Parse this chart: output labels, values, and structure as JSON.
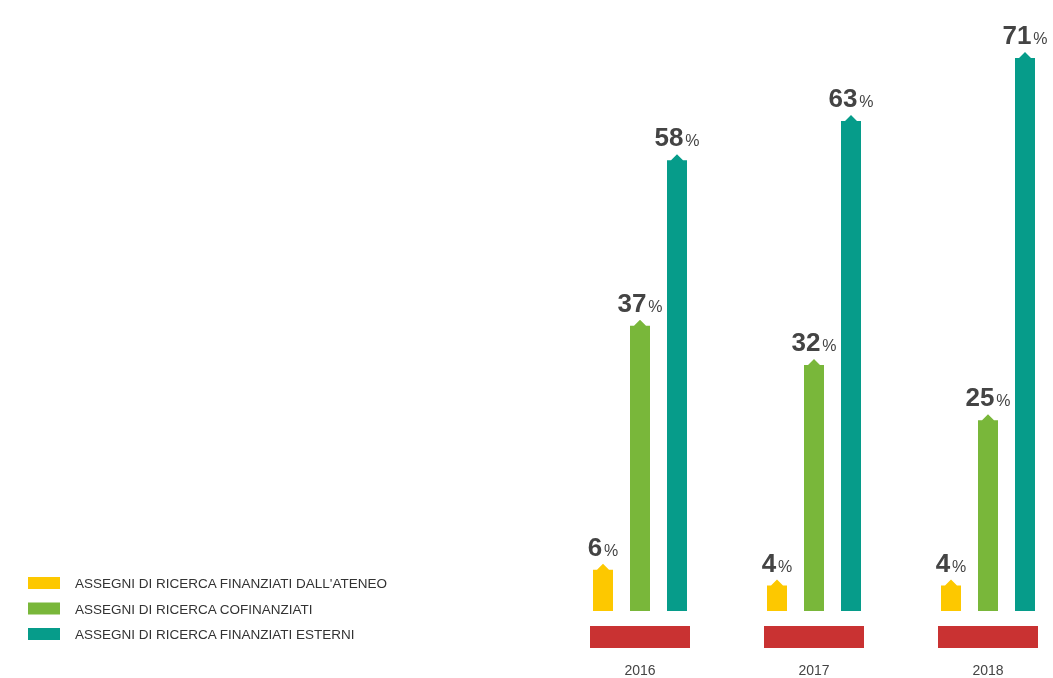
{
  "chart_data": {
    "type": "bar",
    "categories": [
      "2016",
      "2017",
      "2018"
    ],
    "series": [
      {
        "name": "ASSEGNI DI RICERCA FINANZIATI DALL'ATENEO",
        "color": "#fdc800",
        "values": [
          6,
          4,
          4
        ],
        "value_labels": [
          "6%",
          "4%",
          "4%"
        ]
      },
      {
        "name": "ASSEGNI DI RICERCA COFINANZIATI",
        "color": "#79b73a",
        "values": [
          37,
          32,
          25
        ],
        "value_labels": [
          "37%",
          "32%",
          "25%"
        ]
      },
      {
        "name": "ASSEGNI DI RICERCA FINANZIATI ESTERNI",
        "color": "#069c8a",
        "values": [
          58,
          63,
          71
        ],
        "value_labels": [
          "58%",
          "63%",
          "71%"
        ]
      }
    ],
    "legend": "bottom left"
  }
}
